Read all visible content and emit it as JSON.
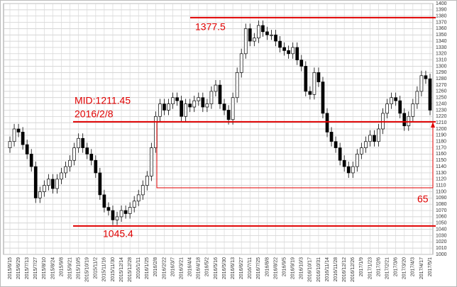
{
  "chart_data": {
    "type": "candlestick",
    "categories": [
      "2015/6/15",
      null,
      "2015/6/29",
      null,
      "2015/7/13",
      null,
      "2015/7/27",
      null,
      "2015/8/10",
      null,
      "2015/8/24",
      null,
      "2015/9/8",
      null,
      "2015/9/21",
      null,
      "2015/10/5",
      null,
      "2015/10/19",
      null,
      "2015/11/2",
      null,
      "2015/11/16",
      null,
      "2015/11/30",
      null,
      "2015/12/14",
      null,
      "2015/12/28",
      null,
      "2016/1/11",
      null,
      "2016/1/25",
      null,
      "2016/2/8",
      null,
      "2016/2/22",
      null,
      "2016/3/7",
      null,
      "2016/3/21",
      null,
      "2016/4/4",
      null,
      "2016/4/18",
      null,
      "2016/5/2",
      null,
      "2016/5/16",
      null,
      "2016/5/30",
      null,
      "2016/6/13",
      null,
      "2016/6/27",
      null,
      "2016/7/11",
      null,
      "2016/7/25",
      null,
      "2016/8/8",
      null,
      "2016/8/22",
      null,
      "2016/9/5",
      null,
      "2016/9/19",
      null,
      "2016/10/3",
      null,
      "2016/10/17",
      null,
      "2016/10/31",
      null,
      "2016/11/14",
      null,
      "2016/11/28",
      null,
      "2016/12/12",
      null,
      "2016/12/26",
      null,
      "2017/1/9",
      null,
      "2017/1/23",
      null,
      "2017/2/6",
      null,
      "2017/2/21",
      null,
      "2017/3/6",
      null,
      "2017/3/20",
      null,
      "2017/4/3",
      null,
      "2017/4/17",
      null,
      "2017/5/1"
    ],
    "open": [
      1170,
      1180,
      1200,
      1195,
      1175,
      1160,
      1140,
      1090,
      1100,
      1110,
      1120,
      1105,
      1120,
      1130,
      1140,
      1150,
      1170,
      1185,
      1170,
      1160,
      1150,
      1130,
      1095,
      1075,
      1070,
      1055,
      1060,
      1070,
      1065,
      1075,
      1085,
      1095,
      1110,
      1125,
      1170,
      1220,
      1240,
      1230,
      1240,
      1250,
      1245,
      1220,
      1240,
      1235,
      1245,
      1250,
      1235,
      1240,
      1260,
      1270,
      1240,
      1230,
      1215,
      1250,
      1290,
      1320,
      1360,
      1340,
      1345,
      1365,
      1355,
      1350,
      1350,
      1340,
      1330,
      1325,
      1320,
      1330,
      1310,
      1300,
      1260,
      1255,
      1290,
      1275,
      1225,
      1195,
      1180,
      1170,
      1150,
      1140,
      1130,
      1140,
      1160,
      1170,
      1180,
      1190,
      1180,
      1200,
      1225,
      1240,
      1250,
      1245,
      1225,
      1205,
      1220,
      1240,
      1260,
      1285,
      1280
    ],
    "high": [
      1188,
      1208,
      1208,
      1203,
      1183,
      1168,
      1148,
      1108,
      1118,
      1128,
      1128,
      1128,
      1138,
      1148,
      1158,
      1178,
      1193,
      1193,
      1178,
      1168,
      1158,
      1138,
      1103,
      1083,
      1078,
      1068,
      1078,
      1078,
      1083,
      1093,
      1103,
      1118,
      1133,
      1178,
      1228,
      1248,
      1248,
      1248,
      1258,
      1258,
      1253,
      1248,
      1248,
      1253,
      1258,
      1258,
      1248,
      1268,
      1278,
      1278,
      1248,
      1238,
      1258,
      1298,
      1328,
      1368,
      1368,
      1353,
      1373,
      1373,
      1363,
      1358,
      1358,
      1348,
      1338,
      1333,
      1338,
      1338,
      1318,
      1308,
      1268,
      1298,
      1298,
      1283,
      1233,
      1203,
      1188,
      1178,
      1158,
      1148,
      1148,
      1168,
      1178,
      1188,
      1198,
      1198,
      1208,
      1233,
      1248,
      1258,
      1258,
      1253,
      1233,
      1228,
      1248,
      1268,
      1293,
      1293,
      1288
    ],
    "low": [
      1162,
      1172,
      1187,
      1167,
      1152,
      1132,
      1082,
      1082,
      1092,
      1102,
      1097,
      1097,
      1112,
      1122,
      1132,
      1142,
      1162,
      1162,
      1152,
      1142,
      1122,
      1087,
      1067,
      1062,
      1047,
      1047,
      1052,
      1057,
      1057,
      1067,
      1077,
      1087,
      1102,
      1117,
      1162,
      1212,
      1222,
      1222,
      1232,
      1237,
      1212,
      1212,
      1227,
      1227,
      1237,
      1227,
      1227,
      1232,
      1252,
      1232,
      1222,
      1207,
      1207,
      1242,
      1282,
      1312,
      1332,
      1332,
      1337,
      1347,
      1342,
      1342,
      1332,
      1322,
      1317,
      1312,
      1312,
      1302,
      1292,
      1252,
      1247,
      1247,
      1267,
      1217,
      1187,
      1172,
      1162,
      1142,
      1132,
      1122,
      1122,
      1132,
      1152,
      1162,
      1172,
      1172,
      1172,
      1192,
      1217,
      1232,
      1237,
      1217,
      1197,
      1197,
      1212,
      1232,
      1252,
      1272,
      1222
    ],
    "close": [
      1180,
      1200,
      1195,
      1175,
      1160,
      1140,
      1090,
      1100,
      1110,
      1120,
      1105,
      1120,
      1130,
      1140,
      1150,
      1170,
      1185,
      1170,
      1160,
      1150,
      1130,
      1095,
      1075,
      1070,
      1055,
      1060,
      1070,
      1065,
      1075,
      1085,
      1095,
      1110,
      1125,
      1170,
      1220,
      1240,
      1230,
      1240,
      1250,
      1245,
      1220,
      1240,
      1235,
      1245,
      1250,
      1235,
      1240,
      1260,
      1270,
      1240,
      1230,
      1215,
      1250,
      1290,
      1320,
      1360,
      1340,
      1345,
      1365,
      1355,
      1350,
      1350,
      1340,
      1330,
      1325,
      1320,
      1330,
      1310,
      1300,
      1260,
      1255,
      1290,
      1275,
      1225,
      1195,
      1180,
      1170,
      1150,
      1140,
      1130,
      1140,
      1160,
      1170,
      1180,
      1190,
      1180,
      1200,
      1225,
      1240,
      1250,
      1245,
      1225,
      1205,
      1220,
      1240,
      1260,
      1285,
      1280,
      1230
    ],
    "ylim": [
      1000,
      1400
    ],
    "yticks": [
      1000,
      1010,
      1020,
      1030,
      1040,
      1050,
      1060,
      1070,
      1080,
      1090,
      1100,
      1110,
      1120,
      1130,
      1140,
      1150,
      1160,
      1170,
      1180,
      1190,
      1200,
      1210,
      1220,
      1230,
      1240,
      1250,
      1260,
      1270,
      1280,
      1290,
      1300,
      1310,
      1320,
      1330,
      1340,
      1350,
      1360,
      1370,
      1380,
      1390,
      1400
    ],
    "grid": true,
    "up_color": "#ffffff",
    "down_color": "#000000",
    "annotation_color": "#e00000",
    "hlines": [
      {
        "value": 1377.5,
        "label": "1377.5"
      },
      {
        "value": 1211.45,
        "label": "MID:1211.45"
      },
      {
        "value": 1045.4,
        "label": "1045.4"
      }
    ],
    "notes": [
      "2016/2/8",
      "65"
    ]
  }
}
